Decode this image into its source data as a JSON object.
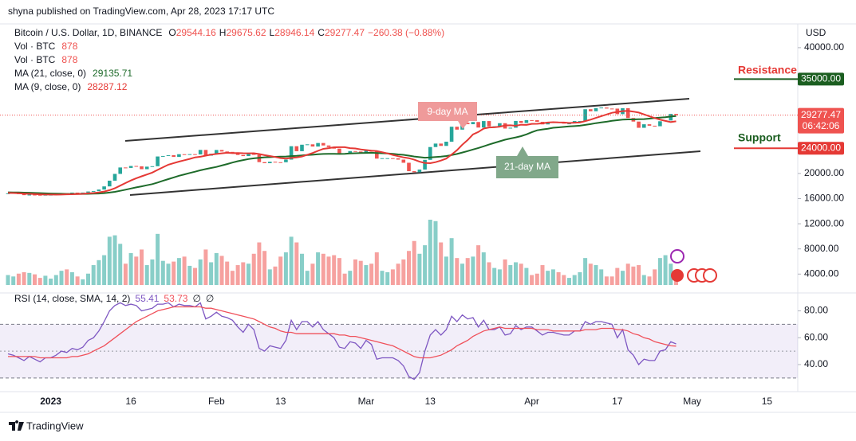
{
  "header": {
    "published": "shyna published on TradingView.com, Apr 28, 2023 17:17 UTC"
  },
  "footer": {
    "brand": "TradingView"
  },
  "chart_data": [
    {
      "type": "candlestick",
      "title": "Bitcoin / U.S. Dollar, 1D, BINANCE",
      "ohlc_labels": [
        "O",
        "H",
        "L",
        "C"
      ],
      "ohlc": [
        29544.16,
        29675.62,
        28946.14,
        29277.47
      ],
      "change": "−260.38 (−0.88%)",
      "up_color": "#26a69a",
      "down_color": "#ef5350",
      "close": [
        16840,
        16920,
        16710,
        16550,
        16630,
        16600,
        16540,
        16610,
        16620,
        16680,
        16850,
        16830,
        16950,
        16940,
        16960,
        17130,
        17190,
        17440,
        17940,
        18850,
        19930,
        20950,
        20880,
        21190,
        21130,
        20680,
        21080,
        21150,
        22700,
        22780,
        22910,
        22630,
        23060,
        23010,
        23070,
        23030,
        23740,
        22830,
        23130,
        23730,
        23490,
        23430,
        23330,
        22940,
        22760,
        23240,
        22960,
        21800,
        21630,
        21860,
        21790,
        21780,
        22200,
        24330,
        23540,
        24570,
        24630,
        24280,
        24840,
        24450,
        24190,
        23950,
        23190,
        23160,
        23560,
        23490,
        23150,
        23650,
        23470,
        22360,
        22430,
        22430,
        22410,
        22200,
        21700,
        20360,
        20190,
        20620,
        22160,
        24200,
        24750,
        24380,
        25050,
        27430,
        26970,
        28050,
        27830,
        28180,
        27300,
        28330,
        27490,
        27500,
        27990,
        27140,
        27270,
        28350,
        28030,
        28480,
        28470,
        28210,
        27800,
        28180,
        28180,
        28050,
        27920,
        27950,
        28330,
        28330,
        30210,
        29890,
        30390,
        30480,
        30320,
        30310,
        29430,
        30380,
        28820,
        28250,
        27260,
        27820,
        27590,
        27510,
        28300,
        28420,
        29470,
        29277.47
      ],
      "volume_legend": [
        {
          "name": "Vol · BTC",
          "value": 878
        },
        {
          "name": "Vol · BTC",
          "value": 878
        }
      ],
      "volume": [
        14,
        12,
        16,
        18,
        17,
        15,
        10,
        13,
        9,
        14,
        20,
        22,
        18,
        12,
        8,
        16,
        28,
        35,
        42,
        68,
        70,
        58,
        30,
        45,
        40,
        50,
        28,
        36,
        72,
        34,
        30,
        33,
        38,
        40,
        27,
        24,
        36,
        50,
        32,
        45,
        41,
        33,
        20,
        28,
        32,
        30,
        44,
        60,
        48,
        22,
        26,
        40,
        46,
        68,
        60,
        44,
        20,
        30,
        46,
        44,
        40,
        42,
        38,
        16,
        20,
        36,
        34,
        28,
        30,
        46,
        20,
        18,
        22,
        30,
        36,
        48,
        62,
        44,
        56,
        92,
        90,
        60,
        40,
        66,
        38,
        30,
        38,
        40,
        56,
        46,
        32,
        24,
        22,
        36,
        28,
        32,
        30,
        24,
        14,
        16,
        28,
        20,
        22,
        18,
        14,
        10,
        14,
        18,
        38,
        30,
        28,
        22,
        12,
        12,
        24,
        20,
        30,
        26,
        28,
        14,
        12,
        22,
        38,
        42,
        30,
        10
      ],
      "series": [
        {
          "name": "MA (21, close, 0)",
          "color": "#1e6b2a",
          "last": 29135.71,
          "values": [
            17000,
            16990,
            16970,
            16950,
            16930,
            16900,
            16870,
            16840,
            16810,
            16790,
            16770,
            16750,
            16740,
            16740,
            16740,
            16760,
            16780,
            16810,
            16870,
            16960,
            17080,
            17240,
            17420,
            17610,
            17790,
            17950,
            18120,
            18300,
            18560,
            18830,
            19100,
            19370,
            19630,
            19850,
            20070,
            20280,
            20510,
            20700,
            20870,
            21040,
            21260,
            21490,
            21730,
            21950,
            22120,
            22290,
            22410,
            22490,
            22570,
            22600,
            22640,
            22670,
            22700,
            22760,
            22800,
            22870,
            22930,
            22980,
            23060,
            23100,
            23110,
            23110,
            23100,
            23130,
            23170,
            23210,
            23240,
            23270,
            23290,
            23250,
            23210,
            23170,
            23110,
            23030,
            22960,
            22830,
            22700,
            22590,
            22510,
            22540,
            22610,
            22670,
            22770,
            22920,
            23100,
            23330,
            23560,
            23810,
            24050,
            24320,
            24590,
            24860,
            25110,
            25360,
            25560,
            25730,
            25930,
            26220,
            26560,
            26860,
            27000,
            27110,
            27270,
            27330,
            27400,
            27480,
            27530,
            27590,
            27720,
            27850,
            28000,
            28120,
            28230,
            28360,
            28470,
            28560,
            28600,
            28590,
            28620,
            28650,
            28720,
            28810,
            28870,
            28950,
            29050,
            29135.71
          ]
        },
        {
          "name": "MA (9, close, 0)",
          "color": "#e53935",
          "last": 28287.12,
          "values": [
            16900,
            16880,
            16850,
            16800,
            16760,
            16720,
            16680,
            16650,
            16640,
            16630,
            16650,
            16680,
            16700,
            16730,
            16760,
            16830,
            16890,
            16990,
            17120,
            17340,
            17640,
            18060,
            18480,
            18880,
            19240,
            19540,
            19830,
            20140,
            20570,
            20990,
            21390,
            21650,
            21890,
            22100,
            22320,
            22550,
            22660,
            22840,
            22990,
            23100,
            23200,
            23290,
            23230,
            23250,
            23220,
            23200,
            23220,
            23090,
            22910,
            22770,
            22620,
            22440,
            22350,
            22470,
            22540,
            22700,
            22980,
            23250,
            23600,
            23910,
            24020,
            24160,
            24170,
            24170,
            24020,
            23970,
            23820,
            23720,
            23620,
            23550,
            23380,
            23190,
            22950,
            22740,
            22560,
            22430,
            22190,
            21870,
            21670,
            21630,
            21800,
            22050,
            22360,
            23010,
            23690,
            24570,
            25320,
            26210,
            26590,
            27140,
            27310,
            27340,
            27440,
            27630,
            27660,
            27580,
            27740,
            27720,
            27880,
            27900,
            27970,
            28100,
            28150,
            28110,
            28100,
            28030,
            28080,
            28100,
            28330,
            28550,
            28830,
            29110,
            29380,
            29650,
            29780,
            29910,
            29960,
            29840,
            29680,
            29390,
            29090,
            28810,
            28550,
            28350,
            28170,
            28287.12
          ]
        }
      ],
      "y_unit": "USD",
      "ylim": [
        1000,
        43150
      ],
      "yticks": [
        {
          "value": 4000,
          "label": "4000.00"
        },
        {
          "value": 8000,
          "label": "8000.00"
        },
        {
          "value": 12000,
          "label": "12000.00"
        },
        {
          "value": 16000,
          "label": "16000.00"
        },
        {
          "value": 20000,
          "label": "20000.00"
        },
        {
          "value": 40000,
          "label": "40000.00"
        }
      ],
      "price_marks": [
        {
          "value": 35000,
          "label": "35000.00",
          "color": "#1b5e20",
          "note": "Resistance"
        },
        {
          "value": 24000,
          "label": "24000.00",
          "color": "#e53935",
          "note": "Support"
        }
      ],
      "last_price": {
        "value": 29277.47,
        "countdown": "06:42:06",
        "color": "#ef5350"
      },
      "annotations": [
        {
          "text": "9-day MA",
          "color": "#ef9a9a"
        },
        {
          "text": "21-day MA",
          "color": "#81a88a"
        }
      ],
      "xtick_labels": [
        "2023",
        "16",
        "Feb",
        "13",
        "Mar",
        "13",
        "Apr",
        "17",
        "May",
        "15"
      ],
      "grid": false
    },
    {
      "type": "line",
      "title": "RSI (14, close, SMA, 14, 2)",
      "na_marks": [
        "∅",
        "∅"
      ],
      "series": [
        {
          "color": "#7e57c2",
          "last": 55.41,
          "values": [
            48,
            47,
            45,
            43,
            46,
            44,
            42,
            45,
            45,
            47,
            50,
            49,
            52,
            51,
            53,
            58,
            60,
            65,
            72,
            80,
            84,
            86,
            84,
            85,
            84,
            80,
            81,
            82,
            85,
            85,
            86,
            83,
            85,
            84,
            84,
            83,
            86,
            74,
            76,
            79,
            76,
            75,
            73,
            68,
            64,
            70,
            66,
            52,
            50,
            54,
            53,
            52,
            58,
            73,
            66,
            72,
            72,
            68,
            72,
            66,
            63,
            60,
            53,
            52,
            57,
            56,
            52,
            58,
            55,
            44,
            45,
            45,
            45,
            43,
            39,
            31,
            29,
            34,
            50,
            62,
            66,
            62,
            66,
            76,
            72,
            77,
            74,
            75,
            68,
            73,
            66,
            66,
            68,
            62,
            63,
            69,
            66,
            68,
            68,
            65,
            62,
            64,
            64,
            63,
            62,
            62,
            65,
            65,
            72,
            70,
            72,
            72,
            71,
            70,
            60,
            66,
            51,
            47,
            40,
            44,
            43,
            43,
            50,
            51,
            57,
            55.41
          ]
        },
        {
          "color": "#f0505a",
          "last": 53.73,
          "values": [
            46,
            46,
            46,
            46,
            46,
            46,
            45,
            45,
            45,
            45,
            45,
            45,
            46,
            46,
            47,
            48,
            50,
            52,
            54,
            57,
            60,
            63,
            66,
            69,
            72,
            74,
            76,
            78,
            80,
            81,
            82,
            83,
            83,
            83,
            83,
            83,
            83,
            82,
            82,
            81,
            80,
            79,
            78,
            77,
            76,
            75,
            74,
            72,
            70,
            68,
            67,
            65,
            64,
            64,
            63,
            63,
            63,
            63,
            63,
            63,
            63,
            63,
            62,
            62,
            61,
            61,
            60,
            59,
            58,
            57,
            56,
            55,
            54,
            52,
            50,
            48,
            46,
            45,
            45,
            45,
            46,
            47,
            49,
            51,
            54,
            56,
            58,
            61,
            63,
            65,
            66,
            67,
            68,
            67,
            67,
            67,
            67,
            67,
            67,
            66,
            66,
            66,
            65,
            65,
            65,
            65,
            65,
            65,
            66,
            66,
            66,
            67,
            67,
            67,
            66,
            66,
            65,
            63,
            62,
            60,
            59,
            57,
            56,
            55,
            54,
            53.73
          ]
        }
      ],
      "ylim": [
        21,
        91
      ],
      "yticks": [
        {
          "value": 40,
          "label": "40.00"
        },
        {
          "value": 60,
          "label": "60.00"
        },
        {
          "value": 80,
          "label": "80.00"
        }
      ],
      "band": [
        30,
        70
      ],
      "midline": 50,
      "band_color": "#7e57c2"
    }
  ]
}
